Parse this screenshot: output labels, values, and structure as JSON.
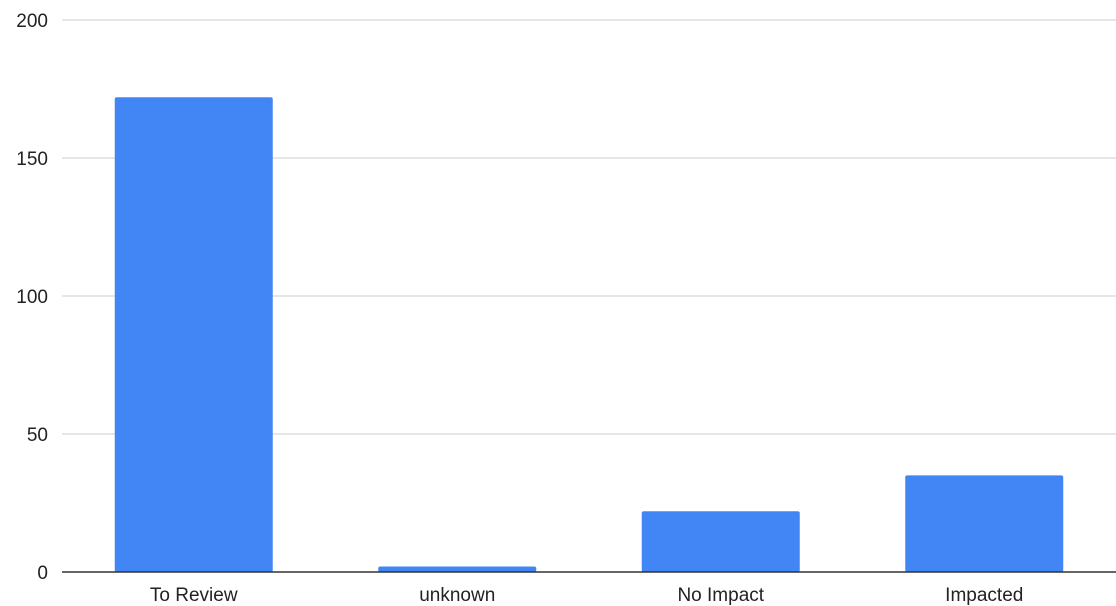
{
  "colors": {
    "bar": "#4285f4",
    "gridline": "#cccccc",
    "axis": "#333333",
    "text": "#222222"
  },
  "chart_data": {
    "type": "bar",
    "title": "",
    "xlabel": "",
    "ylabel": "",
    "categories": [
      "To Review",
      "unknown",
      "No Impact",
      "Impacted"
    ],
    "values": [
      172,
      2,
      22,
      35
    ],
    "ylim": [
      0,
      200
    ],
    "yticks": [
      0,
      50,
      100,
      150,
      200
    ],
    "grid": true,
    "legend": "none"
  }
}
